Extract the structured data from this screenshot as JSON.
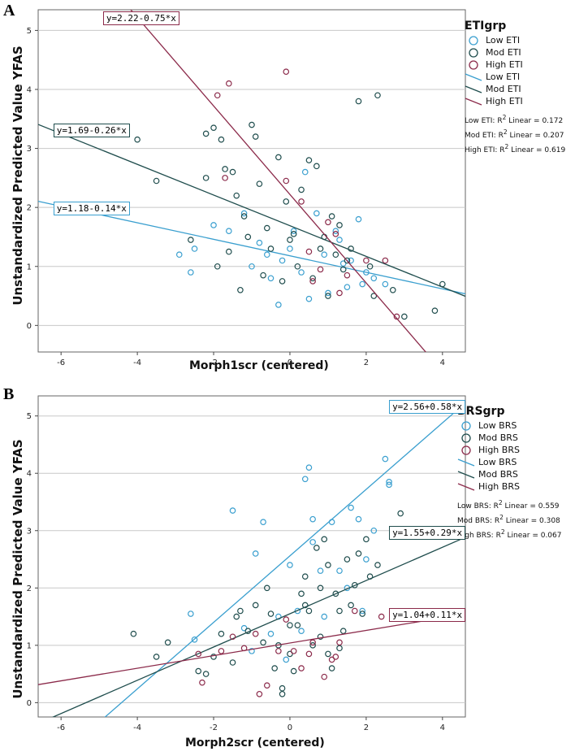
{
  "chart_data": [
    {
      "panel_label": "A",
      "type": "scatter",
      "xlabel": "Morph1scr (centered)",
      "ylabel": "Unstandardized Predicted Value YFAS",
      "xlim": [
        -6.6,
        4.6
      ],
      "ylim": [
        -0.45,
        5.35
      ],
      "xticks": [
        -6,
        -4,
        -2,
        0,
        2,
        4
      ],
      "yticks": [
        0,
        1,
        2,
        3,
        4,
        5
      ],
      "grid": "horizontal",
      "legend": {
        "title": "ETIgrp",
        "placement": "top-right",
        "point_labels": [
          "Low ETI",
          "Mod ETI",
          "High ETI"
        ],
        "line_labels": [
          "Low ETI",
          "Mod ETI",
          "High ETI"
        ],
        "r2_lines": [
          {
            "prefix": "Low ETI: R",
            "suffix": " Linear = 0.172"
          },
          {
            "prefix": "Mod ETI: R",
            "suffix": " Linear = 0.207"
          },
          {
            "prefix": "High ETI: R",
            "suffix": " Linear = 0.619"
          }
        ],
        "sup": "2"
      },
      "series": [
        {
          "name": "Low ETI",
          "color": "#3a9fcf",
          "fit": {
            "intercept": 1.18,
            "slope": -0.14,
            "label": "y=1.18-0.14*x",
            "label_anchor": [
              -6.2,
              1.98
            ]
          },
          "points": [
            [
              -2.9,
              1.2
            ],
            [
              -2.6,
              0.9
            ],
            [
              -2.5,
              1.3
            ],
            [
              -2.0,
              1.7
            ],
            [
              -1.6,
              1.6
            ],
            [
              -1.2,
              1.9
            ],
            [
              -0.8,
              1.4
            ],
            [
              -0.5,
              0.8
            ],
            [
              -0.3,
              0.35
            ],
            [
              -0.2,
              1.1
            ],
            [
              0.1,
              1.6
            ],
            [
              0.3,
              0.9
            ],
            [
              0.5,
              0.45
            ],
            [
              0.7,
              1.9
            ],
            [
              0.9,
              1.2
            ],
            [
              1.0,
              0.55
            ],
            [
              1.2,
              1.6
            ],
            [
              1.4,
              1.05
            ],
            [
              1.5,
              0.65
            ],
            [
              1.6,
              1.1
            ],
            [
              1.8,
              1.8
            ],
            [
              1.9,
              0.7
            ],
            [
              2.0,
              0.9
            ],
            [
              2.2,
              0.8
            ],
            [
              2.5,
              0.7
            ],
            [
              0.0,
              1.3
            ],
            [
              -1.0,
              1.0
            ],
            [
              0.4,
              2.6
            ],
            [
              1.3,
              1.45
            ],
            [
              -0.6,
              1.2
            ]
          ]
        },
        {
          "name": "Mod ETI",
          "color": "#1f4d4d",
          "fit": {
            "intercept": 1.69,
            "slope": -0.26,
            "label": "y=1.69-0.26*x",
            "label_anchor": [
              -6.2,
              3.3
            ]
          },
          "points": [
            [
              -4.0,
              3.15
            ],
            [
              -3.5,
              2.45
            ],
            [
              -2.2,
              3.25
            ],
            [
              -2.0,
              3.35
            ],
            [
              -1.8,
              3.15
            ],
            [
              -1.7,
              2.65
            ],
            [
              -1.5,
              2.6
            ],
            [
              -1.4,
              2.2
            ],
            [
              -1.2,
              1.85
            ],
            [
              -1.0,
              3.4
            ],
            [
              -0.9,
              3.2
            ],
            [
              -0.8,
              2.4
            ],
            [
              -0.6,
              1.65
            ],
            [
              -0.5,
              1.3
            ],
            [
              -0.3,
              2.85
            ],
            [
              -0.1,
              2.1
            ],
            [
              0.1,
              1.55
            ],
            [
              0.3,
              2.3
            ],
            [
              0.5,
              2.8
            ],
            [
              0.7,
              2.7
            ],
            [
              0.9,
              1.5
            ],
            [
              1.1,
              1.85
            ],
            [
              1.3,
              1.7
            ],
            [
              1.4,
              0.95
            ],
            [
              1.6,
              1.3
            ],
            [
              1.8,
              3.8
            ],
            [
              2.1,
              1.0
            ],
            [
              2.3,
              3.9
            ],
            [
              2.7,
              0.6
            ],
            [
              3.0,
              0.15
            ],
            [
              3.8,
              0.25
            ],
            [
              4.0,
              0.7
            ],
            [
              -2.2,
              2.5
            ],
            [
              -1.3,
              0.6
            ],
            [
              -0.7,
              0.85
            ],
            [
              0.2,
              1.0
            ],
            [
              0.6,
              0.8
            ],
            [
              1.0,
              0.5
            ],
            [
              1.5,
              1.1
            ],
            [
              -1.9,
              1.0
            ],
            [
              -1.1,
              1.5
            ],
            [
              -0.2,
              0.75
            ],
            [
              0.8,
              1.3
            ],
            [
              2.2,
              0.5
            ],
            [
              -2.6,
              1.45
            ],
            [
              0.0,
              1.45
            ],
            [
              1.2,
              1.2
            ],
            [
              -1.6,
              1.25
            ]
          ]
        },
        {
          "name": "High ETI",
          "color": "#8b2a4a",
          "fit": {
            "intercept": 2.22,
            "slope": -0.75,
            "label": "y=2.22-0.75*x",
            "label_anchor": [
              -4.9,
              5.2
            ]
          },
          "points": [
            [
              -1.6,
              4.1
            ],
            [
              -1.9,
              3.9
            ],
            [
              -1.7,
              2.5
            ],
            [
              -0.1,
              4.3
            ],
            [
              -0.1,
              2.45
            ],
            [
              0.3,
              2.1
            ],
            [
              0.5,
              1.25
            ],
            [
              0.8,
              0.95
            ],
            [
              1.0,
              1.75
            ],
            [
              1.2,
              1.55
            ],
            [
              1.5,
              0.85
            ],
            [
              2.0,
              1.1
            ],
            [
              2.5,
              1.1
            ],
            [
              2.8,
              0.15
            ],
            [
              1.3,
              0.55
            ],
            [
              0.6,
              0.75
            ]
          ]
        }
      ]
    },
    {
      "panel_label": "B",
      "type": "scatter",
      "xlabel": "Morph2scr (centered)",
      "ylabel": "Unstandardized Predicted Value YFAS",
      "xlim": [
        -6.6,
        4.6
      ],
      "ylim": [
        -0.25,
        5.35
      ],
      "xticks": [
        -6,
        -4,
        -2,
        0,
        2,
        4
      ],
      "yticks": [
        0,
        1,
        2,
        3,
        4,
        5
      ],
      "grid": "horizontal",
      "legend": {
        "title": "BRSgrp",
        "placement": "top-right",
        "point_labels": [
          "Low BRS",
          "Mod BRS",
          "High BRS"
        ],
        "line_labels": [
          "Low BRS",
          "Mod BRS",
          "High BRS"
        ],
        "r2_lines": [
          {
            "prefix": "Low BRS: R",
            "suffix": " Linear = 0.559"
          },
          {
            "prefix": "Mod BRS: R",
            "suffix": " Linear = 0.308"
          },
          {
            "prefix": "High BRS: R",
            "suffix": " Linear = 0.067"
          }
        ],
        "sup": "2"
      },
      "series": [
        {
          "name": "Low BRS",
          "color": "#3a9fcf",
          "fit": {
            "intercept": 2.56,
            "slope": 0.58,
            "label": "y=2.56+0.58*x",
            "label_anchor": [
              2.6,
              5.15
            ]
          },
          "points": [
            [
              -2.6,
              1.55
            ],
            [
              -2.5,
              1.1
            ],
            [
              -1.5,
              3.35
            ],
            [
              -1.2,
              1.3
            ],
            [
              -0.9,
              2.6
            ],
            [
              -0.7,
              3.15
            ],
            [
              -0.5,
              1.2
            ],
            [
              -0.3,
              1.5
            ],
            [
              0.0,
              2.4
            ],
            [
              0.2,
              1.6
            ],
            [
              0.4,
              3.9
            ],
            [
              0.5,
              4.1
            ],
            [
              0.6,
              2.8
            ],
            [
              0.6,
              3.2
            ],
            [
              0.8,
              2.3
            ],
            [
              1.1,
              3.15
            ],
            [
              1.3,
              2.3
            ],
            [
              1.5,
              2.0
            ],
            [
              1.6,
              3.4
            ],
            [
              1.8,
              3.2
            ],
            [
              2.0,
              2.5
            ],
            [
              2.2,
              3.0
            ],
            [
              2.5,
              4.25
            ],
            [
              2.6,
              3.8
            ],
            [
              2.6,
              3.85
            ],
            [
              -0.1,
              0.75
            ],
            [
              0.3,
              1.25
            ],
            [
              -1.0,
              0.9
            ],
            [
              1.9,
              1.6
            ],
            [
              0.9,
              1.5
            ]
          ]
        },
        {
          "name": "Mod BRS",
          "color": "#1f4d4d",
          "fit": {
            "intercept": 1.55,
            "slope": 0.29,
            "label": "y=1.55+0.29*x",
            "label_anchor": [
              2.6,
              2.95
            ]
          },
          "points": [
            [
              -4.1,
              1.2
            ],
            [
              -3.5,
              0.8
            ],
            [
              -3.2,
              1.05
            ],
            [
              -2.4,
              0.55
            ],
            [
              -2.2,
              0.5
            ],
            [
              -2.0,
              0.8
            ],
            [
              -1.8,
              1.2
            ],
            [
              -1.5,
              0.7
            ],
            [
              -1.3,
              1.6
            ],
            [
              -1.1,
              1.25
            ],
            [
              -0.9,
              1.7
            ],
            [
              -0.7,
              1.05
            ],
            [
              -0.5,
              1.55
            ],
            [
              -0.4,
              0.6
            ],
            [
              -0.2,
              0.15
            ],
            [
              -0.2,
              0.25
            ],
            [
              0.0,
              0.85
            ],
            [
              0.1,
              0.55
            ],
            [
              0.2,
              1.35
            ],
            [
              0.3,
              1.9
            ],
            [
              0.4,
              2.2
            ],
            [
              0.5,
              1.6
            ],
            [
              0.7,
              2.7
            ],
            [
              0.8,
              1.15
            ],
            [
              0.9,
              2.85
            ],
            [
              1.0,
              0.85
            ],
            [
              1.1,
              0.6
            ],
            [
              1.2,
              1.9
            ],
            [
              1.3,
              0.95
            ],
            [
              1.4,
              1.25
            ],
            [
              1.5,
              2.5
            ],
            [
              1.6,
              1.7
            ],
            [
              1.7,
              2.05
            ],
            [
              1.8,
              2.6
            ],
            [
              1.9,
              1.55
            ],
            [
              2.0,
              2.85
            ],
            [
              2.1,
              2.2
            ],
            [
              2.3,
              2.4
            ],
            [
              2.9,
              3.3
            ],
            [
              -0.6,
              2.0
            ],
            [
              0.0,
              1.35
            ],
            [
              0.6,
              1.0
            ],
            [
              1.0,
              2.4
            ],
            [
              -1.4,
              1.5
            ],
            [
              0.4,
              1.7
            ],
            [
              1.3,
              1.6
            ],
            [
              -0.3,
              1.0
            ],
            [
              0.8,
              2.0
            ]
          ]
        },
        {
          "name": "High BRS",
          "color": "#8b2a4a",
          "fit": {
            "intercept": 1.04,
            "slope": 0.11,
            "label": "y=1.04+0.11*x",
            "label_anchor": [
              2.6,
              1.52
            ]
          },
          "points": [
            [
              -2.4,
              0.85
            ],
            [
              -2.3,
              0.35
            ],
            [
              -1.8,
              0.9
            ],
            [
              -1.2,
              0.95
            ],
            [
              -0.9,
              1.2
            ],
            [
              -0.8,
              0.15
            ],
            [
              -0.6,
              0.3
            ],
            [
              -0.3,
              0.9
            ],
            [
              0.1,
              0.9
            ],
            [
              0.3,
              0.6
            ],
            [
              0.6,
              1.05
            ],
            [
              0.9,
              0.45
            ],
            [
              1.1,
              0.75
            ],
            [
              1.2,
              0.8
            ],
            [
              1.3,
              1.05
            ],
            [
              1.7,
              1.6
            ],
            [
              -1.5,
              1.15
            ],
            [
              0.5,
              0.85
            ],
            [
              -0.1,
              1.45
            ],
            [
              2.4,
              1.5
            ]
          ]
        }
      ]
    }
  ]
}
